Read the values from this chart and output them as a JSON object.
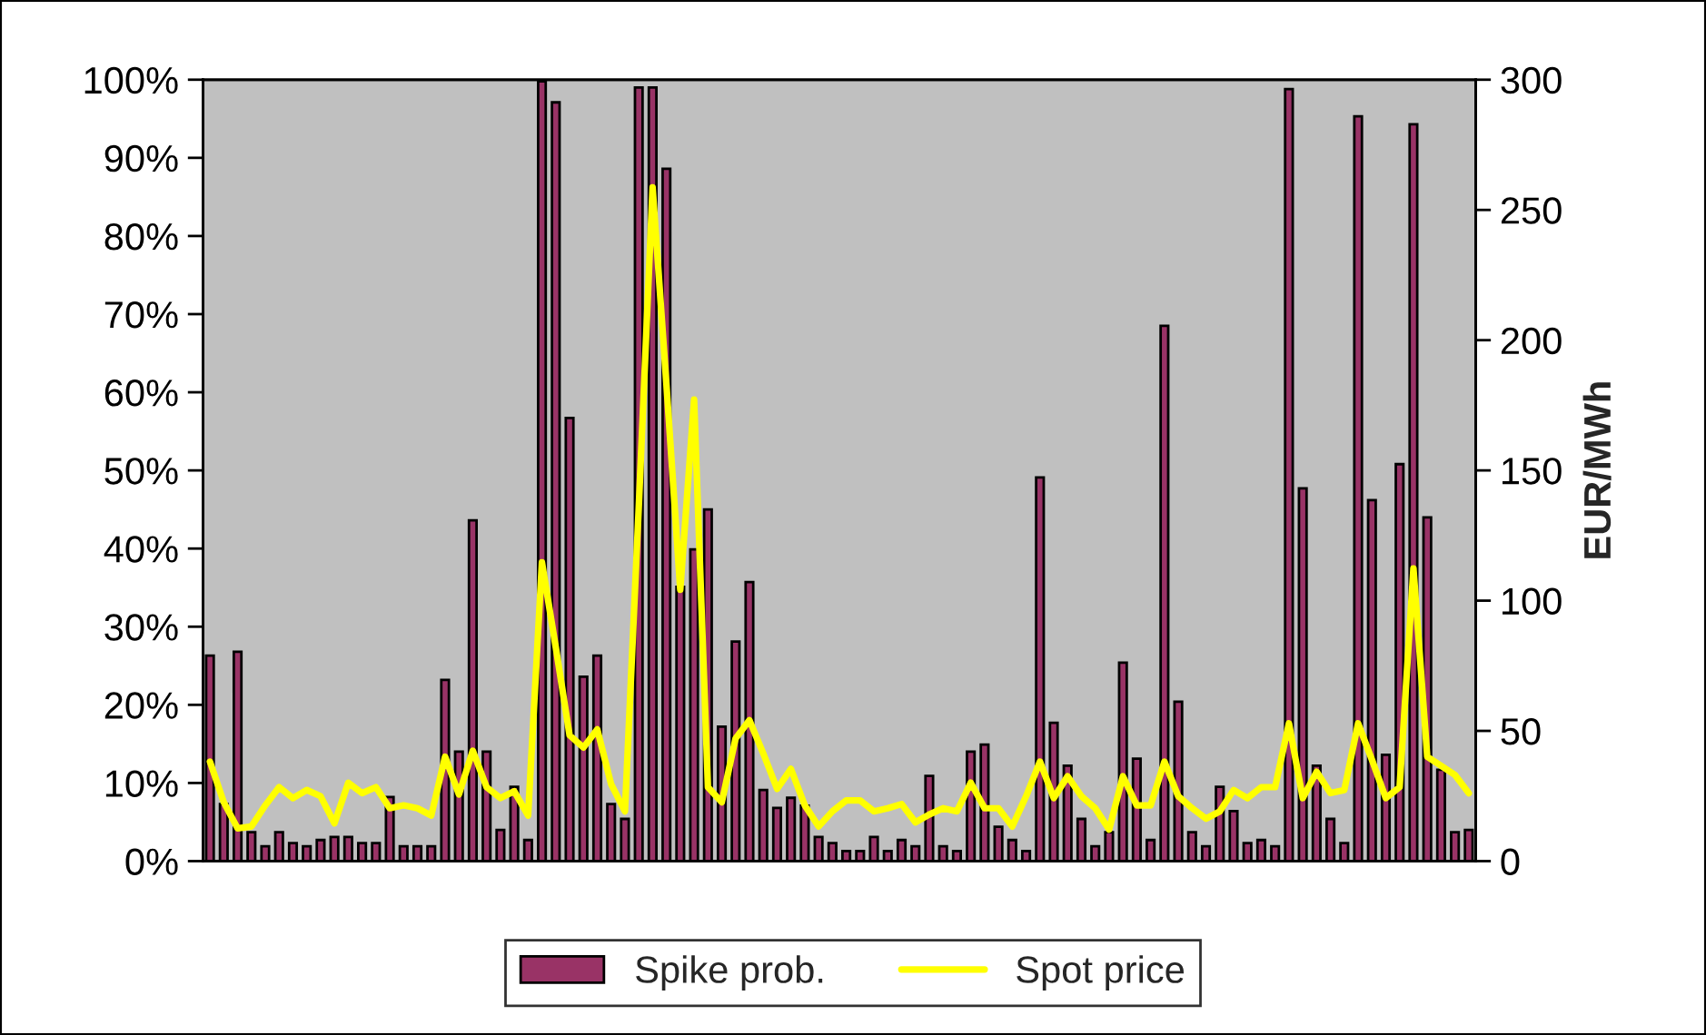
{
  "chart_data": {
    "type": "bar",
    "categories": [
      null,
      null,
      null,
      null,
      null,
      null,
      null,
      null,
      null,
      null,
      null,
      null,
      null,
      null,
      null,
      null,
      null,
      null,
      null,
      null,
      null,
      null,
      null,
      null,
      null,
      null,
      null,
      null,
      null,
      null,
      null,
      null,
      null,
      null,
      null,
      null,
      null,
      null,
      null,
      null,
      null,
      null,
      null,
      null,
      null,
      null,
      null,
      null,
      null,
      null,
      null,
      null,
      null,
      null,
      null,
      null,
      null,
      null,
      null,
      null,
      null,
      null,
      null,
      null,
      null,
      null,
      null,
      null,
      null,
      null,
      null,
      null,
      null,
      null,
      null,
      null,
      null,
      null,
      null,
      null,
      null,
      null,
      null,
      null,
      null,
      null,
      null,
      null,
      null,
      null,
      null,
      null
    ],
    "series": [
      {
        "name": "Spike prob.",
        "color": "#993366",
        "values": [
          26.3,
          7.3,
          26.8,
          3.7,
          1.9,
          3.7,
          2.3,
          1.9,
          2.7,
          3.1,
          3.1,
          2.3,
          2.3,
          8.2,
          1.9,
          1.9,
          1.9,
          23.2,
          14.0,
          43.6,
          14.0,
          4.0,
          9.5,
          2.7,
          99.8,
          97.1,
          56.7,
          23.6,
          26.3,
          7.3,
          5.4,
          99.0,
          99.0,
          88.6,
          35.1,
          39.9,
          45.0,
          17.2,
          28.1,
          35.7,
          9.1,
          6.8,
          8.1,
          7.1,
          3.1,
          2.3,
          1.3,
          1.3,
          3.1,
          1.3,
          2.7,
          1.9,
          10.9,
          1.9,
          1.3,
          14.0,
          14.9,
          4.4,
          2.7,
          1.3,
          49.1,
          17.7,
          12.2,
          5.4,
          1.9,
          3.7,
          25.4,
          13.1,
          2.7,
          68.5,
          20.4,
          3.7,
          1.9,
          9.5,
          6.4,
          2.3,
          2.7,
          1.9,
          98.8,
          47.7,
          12.2,
          5.4,
          2.3,
          95.3,
          46.2,
          13.6,
          50.8,
          94.3,
          44.0,
          11.7,
          3.7,
          4.0
        ]
      },
      {
        "name": "Spot price",
        "type": "line",
        "axis": "y2",
        "color": "#ffff00",
        "values": [
          38.2,
          22.6,
          12.6,
          13.3,
          21.4,
          28.4,
          24.2,
          27.3,
          24.9,
          14.5,
          30.1,
          26.1,
          28.4,
          20.3,
          21.4,
          20.3,
          17.5,
          40.1,
          25.6,
          42.4,
          28.4,
          24.2,
          26.8,
          17.5,
          114.7,
          82.1,
          48.3,
          43.6,
          50.6,
          29.6,
          19.1,
          136,
          258.7,
          183,
          104.2,
          177.2,
          28.4,
          22.6,
          47.1,
          54.1,
          41.3,
          27.7,
          35.4,
          21.4,
          13.3,
          19.1,
          23.3,
          23.3,
          19.1,
          20.3,
          21.9,
          14.9,
          17.9,
          20.3,
          19.1,
          30.1,
          20.3,
          20.3,
          13.3,
          24.9,
          38.2,
          24.2,
          32.6,
          24.9,
          20.3,
          12.1,
          32.6,
          21.4,
          21.4,
          38.2,
          24.9,
          20.3,
          16.3,
          19.1,
          27.3,
          24.2,
          28.4,
          28.4,
          52.9,
          24.2,
          34.3,
          26.1,
          27.3,
          52.9,
          38.9,
          24.2,
          28.4,
          112.4,
          40.1,
          36.6,
          33.1,
          26.1
        ]
      }
    ],
    "ylim": [
      0,
      100
    ],
    "yticks": [
      {
        "value": 0,
        "label": "0%"
      },
      {
        "value": 10,
        "label": "10%"
      },
      {
        "value": 20,
        "label": "20%"
      },
      {
        "value": 30,
        "label": "30%"
      },
      {
        "value": 40,
        "label": "40%"
      },
      {
        "value": 50,
        "label": "50%"
      },
      {
        "value": 60,
        "label": "60%"
      },
      {
        "value": 70,
        "label": "70%"
      },
      {
        "value": 80,
        "label": "80%"
      },
      {
        "value": 90,
        "label": "90%"
      },
      {
        "value": 100,
        "label": "100%"
      }
    ],
    "y2label": "EUR/MWh",
    "y2lim": [
      0,
      300
    ],
    "y2ticks": [
      0,
      50,
      100,
      150,
      200,
      250,
      300
    ],
    "grid": false,
    "legend": "bottom"
  }
}
